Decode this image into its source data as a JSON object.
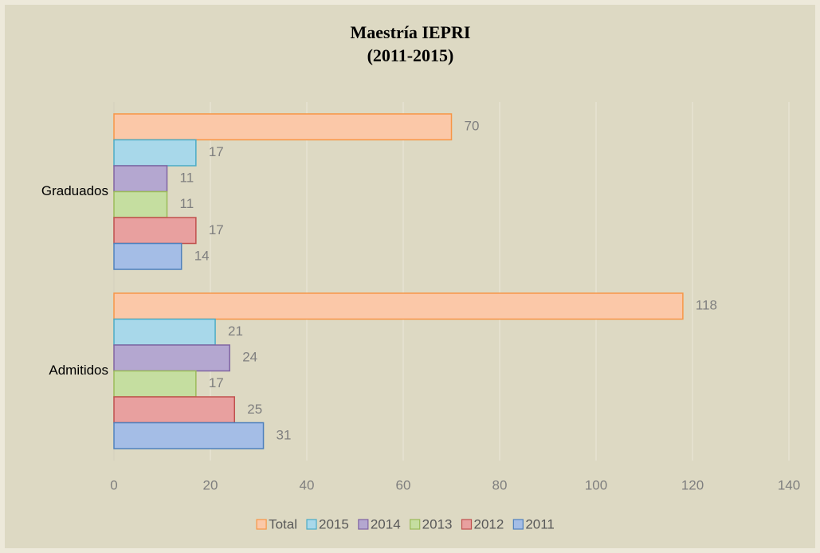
{
  "chart_data": {
    "type": "bar",
    "orientation": "horizontal",
    "title": "Maestría IEPRI",
    "subtitle": "(2011-2015)",
    "categories": [
      "Admitidos",
      "Graduados"
    ],
    "series": [
      {
        "name": "Total",
        "color": "#fbc8a8",
        "edge": "#f79646",
        "values": [
          118,
          70
        ]
      },
      {
        "name": "2015",
        "color": "#a8d8ea",
        "edge": "#4bacc6",
        "values": [
          21,
          17
        ]
      },
      {
        "name": "2014",
        "color": "#b4a7d0",
        "edge": "#8064a2",
        "values": [
          24,
          11
        ]
      },
      {
        "name": "2013",
        "color": "#c5dea0",
        "edge": "#9bbb59",
        "values": [
          17,
          11
        ]
      },
      {
        "name": "2012",
        "color": "#e8a09f",
        "edge": "#c0504d",
        "values": [
          25,
          17
        ]
      },
      {
        "name": "2011",
        "color": "#a4bde6",
        "edge": "#4f81bd",
        "values": [
          31,
          14
        ]
      }
    ],
    "xlim": [
      0,
      140
    ],
    "xticks": [
      0,
      20,
      40,
      60,
      80,
      100,
      120,
      140
    ],
    "grid": true,
    "legend": "bottom"
  }
}
